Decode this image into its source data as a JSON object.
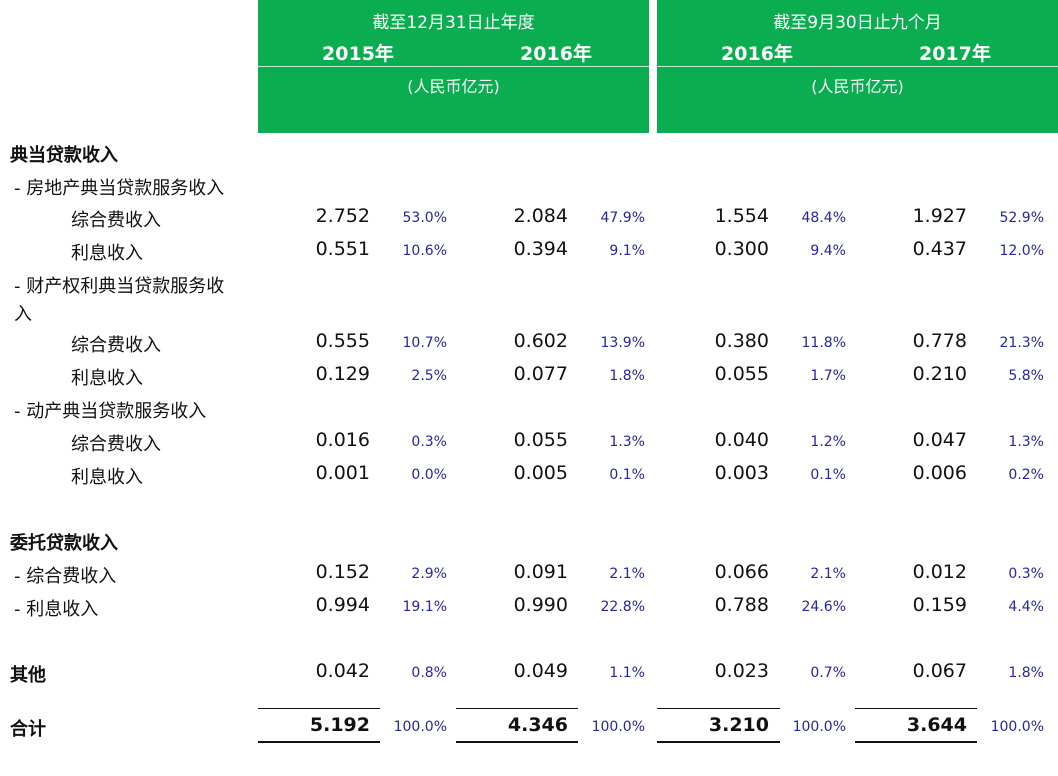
{
  "header": {
    "group_a": {
      "period": "截至12月31日止年度",
      "years": [
        "2015年",
        "2016年"
      ],
      "unit": "(人民币亿元)"
    },
    "group_b": {
      "period": "截至9月30日止九个月",
      "years": [
        "2016年",
        "2017年"
      ],
      "unit": "(人民币亿元)"
    }
  },
  "rows": [
    {
      "label": "典当贷款收入",
      "level": 0
    },
    {
      "label": "- 房地产典当贷款服务收入",
      "level": 1
    },
    {
      "label": "综合费收入",
      "level": 2,
      "cells": [
        [
          "2.752",
          "53.0%"
        ],
        [
          "2.084",
          "47.9%"
        ],
        [
          "1.554",
          "48.4%"
        ],
        [
          "1.927",
          "52.9%"
        ]
      ]
    },
    {
      "label": "利息收入",
      "level": 2,
      "cells": [
        [
          "0.551",
          "10.6%"
        ],
        [
          "0.394",
          "9.1%"
        ],
        [
          "0.300",
          "9.4%"
        ],
        [
          "0.437",
          "12.0%"
        ]
      ]
    },
    {
      "label": "- 财产权利典当贷款服务收",
      "level": 1
    },
    {
      "label": "入",
      "level": 1
    },
    {
      "label": "综合费收入",
      "level": 2,
      "cells": [
        [
          "0.555",
          "10.7%"
        ],
        [
          "0.602",
          "13.9%"
        ],
        [
          "0.380",
          "11.8%"
        ],
        [
          "0.778",
          "21.3%"
        ]
      ]
    },
    {
      "label": "利息收入",
      "level": 2,
      "cells": [
        [
          "0.129",
          "2.5%"
        ],
        [
          "0.077",
          "1.8%"
        ],
        [
          "0.055",
          "1.7%"
        ],
        [
          "0.210",
          "5.8%"
        ]
      ]
    },
    {
      "label": "- 动产典当贷款服务收入",
      "level": 1
    },
    {
      "label": "综合费收入",
      "level": 2,
      "cells": [
        [
          "0.016",
          "0.3%"
        ],
        [
          "0.055",
          "1.3%"
        ],
        [
          "0.040",
          "1.2%"
        ],
        [
          "0.047",
          "1.3%"
        ]
      ]
    },
    {
      "label": "利息收入",
      "level": 2,
      "cells": [
        [
          "0.001",
          "0.0%"
        ],
        [
          "0.005",
          "0.1%"
        ],
        [
          "0.003",
          "0.1%"
        ],
        [
          "0.006",
          "0.2%"
        ]
      ]
    },
    {
      "label": "委托贷款收入",
      "level": 0
    },
    {
      "label": "- 综合费收入",
      "level": 1,
      "cells": [
        [
          "0.152",
          "2.9%"
        ],
        [
          "0.091",
          "2.1%"
        ],
        [
          "0.066",
          "2.1%"
        ],
        [
          "0.012",
          "0.3%"
        ]
      ]
    },
    {
      "label": "- 利息收入",
      "level": 1,
      "cells": [
        [
          "0.994",
          "19.1%"
        ],
        [
          "0.990",
          "22.8%"
        ],
        [
          "0.788",
          "24.6%"
        ],
        [
          "0.159",
          "4.4%"
        ]
      ]
    },
    {
      "label": "其他",
      "level": 0,
      "cells": [
        [
          "0.042",
          "0.8%"
        ],
        [
          "0.049",
          "1.1%"
        ],
        [
          "0.023",
          "0.7%"
        ],
        [
          "0.067",
          "1.8%"
        ]
      ]
    },
    {
      "label": "合计",
      "level": 0,
      "total": true,
      "cells": [
        [
          "5.192",
          "100.0%"
        ],
        [
          "4.346",
          "100.0%"
        ],
        [
          "3.210",
          "100.0%"
        ],
        [
          "3.644",
          "100.0%"
        ]
      ]
    }
  ]
}
